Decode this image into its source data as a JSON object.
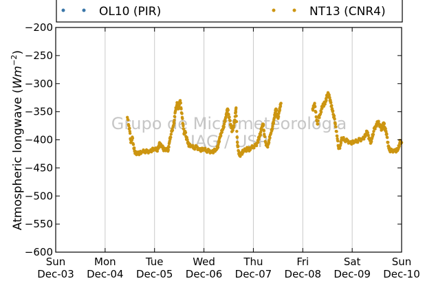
{
  "chart_data": {
    "type": "scatter",
    "ylabel": "Atmospheric longwave",
    "ylabel_unit": "Wm",
    "ylabel_unit_exp": "−2",
    "ylim": [
      -600,
      -200
    ],
    "yticks": [
      -200,
      -250,
      -300,
      -350,
      -400,
      -450,
      -500,
      -550,
      -600
    ],
    "xlim": [
      0,
      7
    ],
    "xticks": [
      {
        "day": "Sun",
        "date": "Dec-03"
      },
      {
        "day": "Mon",
        "date": "Dec-04"
      },
      {
        "day": "Tue",
        "date": "Dec-05"
      },
      {
        "day": "Wed",
        "date": "Dec-06"
      },
      {
        "day": "Thu",
        "date": "Dec-07"
      },
      {
        "day": "Fri",
        "date": "Dec-08"
      },
      {
        "day": "Sat",
        "date": "Dec-09"
      },
      {
        "day": "Sun",
        "date": "Dec-10"
      }
    ],
    "grid": "vertical",
    "legend_position": "top",
    "watermark": [
      "Grupo de Micrometeorologia",
      "IAG / USP"
    ],
    "series": [
      {
        "name": "OL10 (PIR)",
        "color": "#3a76a8",
        "points": []
      },
      {
        "name": "NT13 (CNR4)",
        "color": "#cc9511",
        "points": [
          [
            1.45,
            -360
          ],
          [
            1.48,
            -375
          ],
          [
            1.5,
            -385
          ],
          [
            1.52,
            -405
          ],
          [
            1.55,
            -395
          ],
          [
            1.58,
            -415
          ],
          [
            1.6,
            -420
          ],
          [
            1.62,
            -425
          ],
          [
            1.65,
            -422
          ],
          [
            1.7,
            -424
          ],
          [
            1.75,
            -422
          ],
          [
            1.8,
            -420
          ],
          [
            1.85,
            -421
          ],
          [
            1.9,
            -420
          ],
          [
            1.95,
            -418
          ],
          [
            2.0,
            -417
          ],
          [
            2.05,
            -418
          ],
          [
            2.08,
            -415
          ],
          [
            2.1,
            -405
          ],
          [
            2.12,
            -410
          ],
          [
            2.15,
            -412
          ],
          [
            2.18,
            -416
          ],
          [
            2.2,
            -418
          ],
          [
            2.25,
            -415
          ],
          [
            2.28,
            -418
          ],
          [
            2.3,
            -405
          ],
          [
            2.32,
            -395
          ],
          [
            2.35,
            -385
          ],
          [
            2.38,
            -375
          ],
          [
            2.4,
            -365
          ],
          [
            2.42,
            -350
          ],
          [
            2.44,
            -342
          ],
          [
            2.46,
            -335
          ],
          [
            2.48,
            -345
          ],
          [
            2.5,
            -338
          ],
          [
            2.52,
            -330
          ],
          [
            2.54,
            -345
          ],
          [
            2.56,
            -360
          ],
          [
            2.58,
            -375
          ],
          [
            2.6,
            -390
          ],
          [
            2.62,
            -385
          ],
          [
            2.64,
            -395
          ],
          [
            2.66,
            -400
          ],
          [
            2.68,
            -405
          ],
          [
            2.7,
            -410
          ],
          [
            2.75,
            -412
          ],
          [
            2.8,
            -414
          ],
          [
            2.85,
            -413
          ],
          [
            2.9,
            -416
          ],
          [
            2.95,
            -418
          ],
          [
            3.0,
            -417
          ],
          [
            3.05,
            -419
          ],
          [
            3.1,
            -420
          ],
          [
            3.15,
            -421
          ],
          [
            3.2,
            -420
          ],
          [
            3.25,
            -418
          ],
          [
            3.28,
            -412
          ],
          [
            3.3,
            -405
          ],
          [
            3.32,
            -395
          ],
          [
            3.35,
            -388
          ],
          [
            3.38,
            -382
          ],
          [
            3.4,
            -376
          ],
          [
            3.42,
            -368
          ],
          [
            3.44,
            -360
          ],
          [
            3.46,
            -352
          ],
          [
            3.48,
            -345
          ],
          [
            3.5,
            -355
          ],
          [
            3.52,
            -365
          ],
          [
            3.55,
            -375
          ],
          [
            3.57,
            -385
          ],
          [
            3.6,
            -378
          ],
          [
            3.62,
            -365
          ],
          [
            3.64,
            -352
          ],
          [
            3.65,
            -343
          ],
          [
            3.67,
            -395
          ],
          [
            3.68,
            -410
          ],
          [
            3.7,
            -420
          ],
          [
            3.72,
            -428
          ],
          [
            3.75,
            -425
          ],
          [
            3.78,
            -422
          ],
          [
            3.8,
            -420
          ],
          [
            3.85,
            -418
          ],
          [
            3.88,
            -416
          ],
          [
            3.9,
            -414
          ],
          [
            3.92,
            -418
          ],
          [
            3.95,
            -415
          ],
          [
            4.0,
            -412
          ],
          [
            4.05,
            -410
          ],
          [
            4.08,
            -405
          ],
          [
            4.1,
            -400
          ],
          [
            4.12,
            -395
          ],
          [
            4.14,
            -390
          ],
          [
            4.16,
            -382
          ],
          [
            4.18,
            -375
          ],
          [
            4.2,
            -372
          ],
          [
            4.22,
            -390
          ],
          [
            4.25,
            -405
          ],
          [
            4.28,
            -412
          ],
          [
            4.3,
            -408
          ],
          [
            4.32,
            -400
          ],
          [
            4.35,
            -390
          ],
          [
            4.38,
            -380
          ],
          [
            4.4,
            -372
          ],
          [
            4.42,
            -362
          ],
          [
            4.44,
            -352
          ],
          [
            4.46,
            -345
          ],
          [
            4.48,
            -355
          ],
          [
            4.5,
            -362
          ],
          [
            4.52,
            -350
          ],
          [
            4.54,
            -342
          ],
          [
            4.56,
            -335
          ],
          [
            5.2,
            -345
          ],
          [
            5.22,
            -342
          ],
          [
            5.24,
            -335
          ],
          [
            5.26,
            -350
          ],
          [
            5.28,
            -365
          ],
          [
            5.3,
            -372
          ],
          [
            5.32,
            -360
          ],
          [
            5.35,
            -355
          ],
          [
            5.38,
            -345
          ],
          [
            5.4,
            -340
          ],
          [
            5.42,
            -338
          ],
          [
            5.44,
            -335
          ],
          [
            5.46,
            -332
          ],
          [
            5.48,
            -325
          ],
          [
            5.5,
            -320
          ],
          [
            5.52,
            -318
          ],
          [
            5.54,
            -325
          ],
          [
            5.56,
            -330
          ],
          [
            5.58,
            -340
          ],
          [
            5.6,
            -348
          ],
          [
            5.62,
            -355
          ],
          [
            5.64,
            -362
          ],
          [
            5.66,
            -372
          ],
          [
            5.68,
            -385
          ],
          [
            5.7,
            -398
          ],
          [
            5.72,
            -412
          ],
          [
            5.74,
            -414
          ],
          [
            5.76,
            -410
          ],
          [
            5.78,
            -400
          ],
          [
            5.8,
            -398
          ],
          [
            5.85,
            -400
          ],
          [
            5.9,
            -402
          ],
          [
            5.95,
            -404
          ],
          [
            6.0,
            -405
          ],
          [
            6.05,
            -404
          ],
          [
            6.1,
            -402
          ],
          [
            6.15,
            -400
          ],
          [
            6.2,
            -398
          ],
          [
            6.25,
            -395
          ],
          [
            6.28,
            -390
          ],
          [
            6.3,
            -385
          ],
          [
            6.32,
            -392
          ],
          [
            6.35,
            -398
          ],
          [
            6.38,
            -405
          ],
          [
            6.4,
            -398
          ],
          [
            6.42,
            -390
          ],
          [
            6.45,
            -380
          ],
          [
            6.48,
            -375
          ],
          [
            6.5,
            -372
          ],
          [
            6.52,
            -368
          ],
          [
            6.55,
            -372
          ],
          [
            6.58,
            -378
          ],
          [
            6.6,
            -382
          ],
          [
            6.62,
            -375
          ],
          [
            6.64,
            -370
          ],
          [
            6.66,
            -378
          ],
          [
            6.68,
            -385
          ],
          [
            6.7,
            -390
          ],
          [
            6.72,
            -405
          ],
          [
            6.74,
            -415
          ],
          [
            6.76,
            -418
          ],
          [
            6.8,
            -420
          ],
          [
            6.85,
            -418
          ],
          [
            6.9,
            -419
          ],
          [
            6.93,
            -417
          ],
          [
            6.95,
            -410
          ],
          [
            6.97,
            -402
          ],
          [
            7.0,
            -405
          ]
        ]
      }
    ]
  }
}
